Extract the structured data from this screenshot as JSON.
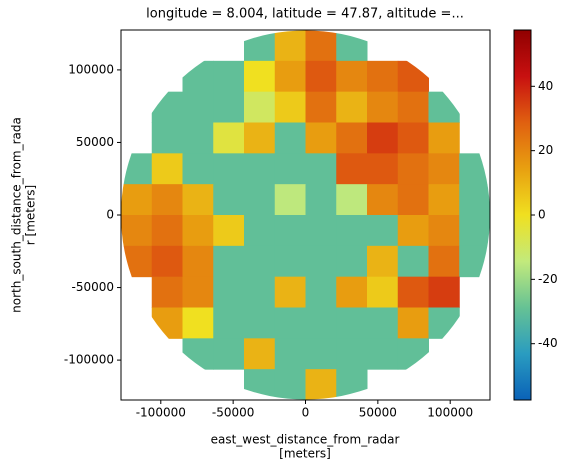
{
  "chart_data": {
    "type": "heatmap",
    "title": "longitude = 8.004, latitude = 47.87, altitude =...",
    "xlabel": [
      "east_west_distance_from_radar",
      "[meters]"
    ],
    "ylabel": [
      "north_south_distance_from_rada",
      "r [meters]"
    ],
    "xlim": [
      -127500,
      127500
    ],
    "ylim": [
      -127500,
      127500
    ],
    "xticks": [
      -100000,
      -50000,
      0,
      50000,
      100000
    ],
    "yticks": [
      -100000,
      -50000,
      0,
      50000,
      100000
    ],
    "clim": [
      -57.5,
      57.5
    ],
    "cticks": [
      -40,
      -20,
      0,
      20,
      40
    ],
    "colormap": [
      "#0a62b8",
      "#2a9cc0",
      "#66c294",
      "#c2ea7c",
      "#f0e020",
      "#e8a010",
      "#e06010",
      "#c81010",
      "#900000"
    ],
    "z": [
      [
        null,
        null,
        null,
        null,
        -30,
        10,
        25,
        -30,
        null,
        null,
        null,
        null
      ],
      [
        null,
        null,
        -30,
        -30,
        0,
        15,
        30,
        20,
        25,
        30,
        null,
        null
      ],
      [
        null,
        -30,
        -30,
        -30,
        -10,
        5,
        25,
        10,
        20,
        25,
        -30,
        null
      ],
      [
        null,
        -30,
        -30,
        -5,
        10,
        -30,
        15,
        25,
        35,
        30,
        15,
        null
      ],
      [
        -30,
        5,
        -30,
        -30,
        -30,
        -30,
        -30,
        30,
        30,
        25,
        20,
        -30
      ],
      [
        15,
        20,
        10,
        -30,
        -30,
        -15,
        -30,
        -15,
        20,
        25,
        15,
        -30
      ],
      [
        20,
        25,
        15,
        5,
        -30,
        -30,
        -30,
        -30,
        -30,
        15,
        20,
        -30
      ],
      [
        25,
        30,
        20,
        -30,
        -30,
        -30,
        -30,
        -30,
        10,
        -30,
        25,
        -30
      ],
      [
        null,
        25,
        20,
        -30,
        -30,
        10,
        -30,
        15,
        5,
        30,
        35,
        null
      ],
      [
        null,
        15,
        0,
        -30,
        -30,
        -30,
        -30,
        -30,
        -30,
        15,
        -30,
        null
      ],
      [
        null,
        null,
        -30,
        -30,
        10,
        -30,
        -30,
        -30,
        -30,
        -30,
        null,
        null
      ],
      [
        null,
        null,
        null,
        null,
        -30,
        -30,
        10,
        -30,
        null,
        null,
        null,
        null
      ]
    ]
  }
}
